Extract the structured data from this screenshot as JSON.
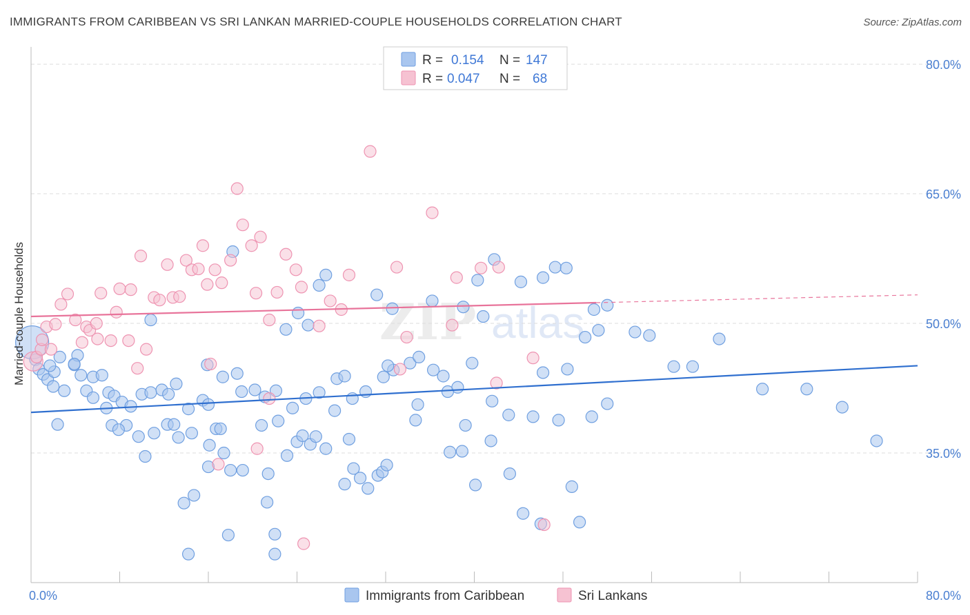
{
  "title": "IMMIGRANTS FROM CARIBBEAN VS SRI LANKAN MARRIED-COUPLE HOUSEHOLDS CORRELATION CHART",
  "source": "Source: ZipAtlas.com",
  "watermark": {
    "zip": "ZIP",
    "atlas": "atlas"
  },
  "colors": {
    "blue_fill": "#a9c6ef",
    "blue_stroke": "#6f9fe0",
    "blue_line": "#2f6fcf",
    "pink_fill": "#f6c2d2",
    "pink_stroke": "#ee93b1",
    "pink_line": "#e8739a",
    "tick_text": "#4a7fd1",
    "grid": "#dddddd"
  },
  "legend": {
    "rows": [
      {
        "r_label": "R =",
        "r_value": "0.154",
        "n_label": "N =",
        "n_value": "147"
      },
      {
        "r_label": "R =",
        "r_value": "0.047",
        "n_label": "N =",
        "n_value": "68"
      }
    ]
  },
  "chart_data": {
    "type": "scatter",
    "title": "IMMIGRANTS FROM CARIBBEAN VS SRI LANKAN MARRIED-COUPLE HOUSEHOLDS CORRELATION CHART",
    "xlabel": "",
    "ylabel": "Married-couple Households",
    "xlim": [
      0,
      80
    ],
    "ylim": [
      20,
      82
    ],
    "x_tick_labels": [
      "0.0%",
      "80.0%"
    ],
    "y_ticks": [
      35,
      50,
      65,
      80
    ],
    "y_tick_labels": [
      "35.0%",
      "50.0%",
      "65.0%",
      "80.0%"
    ],
    "grid": true,
    "legend_position": "top-center",
    "series": [
      {
        "name": "Immigrants from Caribbean",
        "color": "#a9c6ef",
        "r": 0.154,
        "n": 147,
        "trend": {
          "x": [
            0,
            80
          ],
          "y": [
            39.7,
            45.1
          ],
          "style": "solid"
        },
        "points": [
          [
            0.1,
            47.8
          ],
          [
            0.4,
            45.8
          ],
          [
            0.7,
            44.7
          ],
          [
            1.1,
            44.1
          ],
          [
            1.5,
            43.5
          ],
          [
            2.1,
            44.4
          ],
          [
            1.7,
            45.1
          ],
          [
            2.0,
            42.7
          ],
          [
            2.4,
            38.3
          ],
          [
            2.6,
            46.1
          ],
          [
            3.9,
            45.2
          ],
          [
            4.2,
            46.3
          ],
          [
            4.5,
            44.0
          ],
          [
            3.0,
            42.2
          ],
          [
            5.0,
            42.2
          ],
          [
            5.6,
            43.8
          ],
          [
            6.4,
            44.0
          ],
          [
            7.0,
            42.0
          ],
          [
            7.5,
            41.6
          ],
          [
            8.2,
            40.9
          ],
          [
            9.0,
            40.4
          ],
          [
            10.0,
            41.8
          ],
          [
            10.8,
            42.0
          ],
          [
            11.8,
            42.3
          ],
          [
            12.4,
            41.8
          ],
          [
            13.1,
            43.0
          ],
          [
            14.2,
            40.1
          ],
          [
            15.5,
            41.1
          ],
          [
            16.0,
            40.6
          ],
          [
            17.3,
            43.8
          ],
          [
            18.6,
            44.2
          ],
          [
            19.0,
            42.1
          ],
          [
            20.2,
            42.3
          ],
          [
            21.1,
            41.5
          ],
          [
            22.1,
            42.2
          ],
          [
            23.6,
            40.2
          ],
          [
            24.8,
            41.3
          ],
          [
            26.0,
            42.0
          ],
          [
            27.6,
            43.6
          ],
          [
            28.3,
            43.9
          ],
          [
            29.0,
            41.3
          ],
          [
            30.2,
            42.1
          ],
          [
            31.8,
            43.8
          ],
          [
            32.7,
            44.6
          ],
          [
            34.7,
            38.8
          ],
          [
            3.9,
            45.3
          ],
          [
            5.6,
            41.4
          ],
          [
            6.8,
            40.2
          ],
          [
            7.3,
            38.2
          ],
          [
            8.6,
            38.2
          ],
          [
            7.9,
            37.7
          ],
          [
            9.7,
            36.9
          ],
          [
            10.3,
            34.6
          ],
          [
            11.1,
            37.3
          ],
          [
            12.3,
            38.3
          ],
          [
            13.3,
            36.8
          ],
          [
            14.5,
            37.3
          ],
          [
            16.1,
            35.9
          ],
          [
            16.7,
            37.8
          ],
          [
            17.4,
            35.0
          ],
          [
            18.0,
            33.0
          ],
          [
            19.1,
            33.0
          ],
          [
            20.8,
            38.2
          ],
          [
            21.4,
            32.6
          ],
          [
            22.3,
            38.7
          ],
          [
            23.1,
            34.7
          ],
          [
            24.0,
            36.3
          ],
          [
            24.5,
            37.0
          ],
          [
            25.2,
            36.0
          ],
          [
            25.7,
            36.9
          ],
          [
            26.6,
            35.5
          ],
          [
            27.4,
            39.9
          ],
          [
            28.7,
            36.6
          ],
          [
            29.1,
            33.2
          ],
          [
            28.3,
            31.4
          ],
          [
            29.7,
            32.1
          ],
          [
            31.3,
            32.4
          ],
          [
            31.7,
            32.8
          ],
          [
            32.1,
            33.6
          ],
          [
            30.4,
            30.9
          ],
          [
            32.2,
            45.1
          ],
          [
            34.2,
            45.4
          ],
          [
            35.0,
            46.1
          ],
          [
            36.3,
            44.6
          ],
          [
            37.2,
            43.9
          ],
          [
            37.6,
            42.1
          ],
          [
            38.5,
            42.6
          ],
          [
            39.8,
            45.4
          ],
          [
            41.6,
            41.0
          ],
          [
            43.1,
            39.4
          ],
          [
            45.3,
            39.2
          ],
          [
            46.2,
            44.3
          ],
          [
            48.4,
            44.7
          ],
          [
            50.0,
            48.4
          ],
          [
            34.9,
            40.6
          ],
          [
            37.8,
            35.1
          ],
          [
            38.9,
            35.2
          ],
          [
            39.2,
            38.2
          ],
          [
            41.5,
            36.4
          ],
          [
            40.1,
            31.3
          ],
          [
            43.2,
            32.6
          ],
          [
            46.0,
            26.8
          ],
          [
            48.8,
            31.1
          ],
          [
            10.8,
            50.4
          ],
          [
            18.2,
            58.3
          ],
          [
            23.0,
            49.3
          ],
          [
            24.1,
            51.2
          ],
          [
            25.0,
            49.8
          ],
          [
            26.0,
            54.4
          ],
          [
            26.6,
            55.6
          ],
          [
            31.2,
            53.3
          ],
          [
            32.6,
            51.7
          ],
          [
            36.2,
            52.6
          ],
          [
            39.0,
            51.9
          ],
          [
            40.3,
            55.0
          ],
          [
            40.8,
            50.8
          ],
          [
            41.8,
            57.4
          ],
          [
            44.2,
            54.8
          ],
          [
            46.2,
            55.3
          ],
          [
            47.3,
            56.5
          ],
          [
            48.3,
            56.4
          ],
          [
            50.8,
            51.6
          ],
          [
            52.0,
            52.1
          ],
          [
            51.2,
            49.2
          ],
          [
            54.5,
            49.0
          ],
          [
            55.8,
            48.6
          ],
          [
            58.0,
            45.0
          ],
          [
            59.7,
            45.0
          ],
          [
            62.1,
            48.2
          ],
          [
            66.0,
            42.4
          ],
          [
            70.0,
            42.4
          ],
          [
            73.2,
            40.3
          ],
          [
            76.3,
            36.4
          ],
          [
            52.0,
            40.7
          ],
          [
            50.6,
            39.2
          ],
          [
            47.6,
            38.8
          ],
          [
            44.4,
            28.0
          ],
          [
            49.5,
            27.0
          ],
          [
            13.8,
            29.2
          ],
          [
            14.7,
            30.1
          ],
          [
            17.8,
            25.5
          ],
          [
            21.3,
            29.3
          ],
          [
            22.0,
            25.6
          ],
          [
            14.2,
            23.3
          ],
          [
            22.0,
            23.3
          ],
          [
            16.0,
            33.4
          ],
          [
            17.1,
            37.8
          ],
          [
            12.9,
            38.3
          ],
          [
            15.9,
            45.2
          ]
        ]
      },
      {
        "name": "Sri Lankans",
        "color": "#f6c2d2",
        "r": 0.047,
        "n": 68,
        "trend": {
          "x": [
            0,
            80
          ],
          "y": [
            50.8,
            53.3
          ],
          "style": "solid-to-dashed",
          "solid_until_x": 51
        },
        "points": [
          [
            0.2,
            45.6
          ],
          [
            0.5,
            46.1
          ],
          [
            0.9,
            47.0
          ],
          [
            1.4,
            49.6
          ],
          [
            2.2,
            49.9
          ],
          [
            2.7,
            52.2
          ],
          [
            3.3,
            53.4
          ],
          [
            4.0,
            50.4
          ],
          [
            4.6,
            47.8
          ],
          [
            5.0,
            49.6
          ],
          [
            5.3,
            49.2
          ],
          [
            5.9,
            50.0
          ],
          [
            6.3,
            53.5
          ],
          [
            7.2,
            48.0
          ],
          [
            7.7,
            51.3
          ],
          [
            8.0,
            54.0
          ],
          [
            9.0,
            53.9
          ],
          [
            9.9,
            57.8
          ],
          [
            10.4,
            47.0
          ],
          [
            11.1,
            53.0
          ],
          [
            11.6,
            52.7
          ],
          [
            12.3,
            56.8
          ],
          [
            12.8,
            53.0
          ],
          [
            13.4,
            53.1
          ],
          [
            14.0,
            57.3
          ],
          [
            14.5,
            56.2
          ],
          [
            15.1,
            56.3
          ],
          [
            15.5,
            59.0
          ],
          [
            15.9,
            54.5
          ],
          [
            16.6,
            56.2
          ],
          [
            17.2,
            54.7
          ],
          [
            18.0,
            57.3
          ],
          [
            18.6,
            65.6
          ],
          [
            19.1,
            61.4
          ],
          [
            19.9,
            59.0
          ],
          [
            20.3,
            53.5
          ],
          [
            20.7,
            60.0
          ],
          [
            21.5,
            50.4
          ],
          [
            22.2,
            53.6
          ],
          [
            23.0,
            58.0
          ],
          [
            23.9,
            56.2
          ],
          [
            24.4,
            54.2
          ],
          [
            26.0,
            49.7
          ],
          [
            27.0,
            52.6
          ],
          [
            28.0,
            51.6
          ],
          [
            28.7,
            55.6
          ],
          [
            30.6,
            69.9
          ],
          [
            33.0,
            56.5
          ],
          [
            33.9,
            48.4
          ],
          [
            36.2,
            62.8
          ],
          [
            38.4,
            55.3
          ],
          [
            38.0,
            49.8
          ],
          [
            40.6,
            56.4
          ],
          [
            42.2,
            56.5
          ],
          [
            45.3,
            46.0
          ],
          [
            1.0,
            48.1
          ],
          [
            1.8,
            47.0
          ],
          [
            6.0,
            48.2
          ],
          [
            8.8,
            48.0
          ],
          [
            9.6,
            44.8
          ],
          [
            16.2,
            45.3
          ],
          [
            16.9,
            33.7
          ],
          [
            20.4,
            35.5
          ],
          [
            21.5,
            41.3
          ],
          [
            24.6,
            24.5
          ],
          [
            33.3,
            44.7
          ],
          [
            42.0,
            43.1
          ],
          [
            46.3,
            26.7
          ]
        ]
      }
    ]
  },
  "bottom_legend": {
    "items": [
      {
        "label": "Immigrants from Caribbean"
      },
      {
        "label": "Sri Lankans"
      }
    ]
  }
}
